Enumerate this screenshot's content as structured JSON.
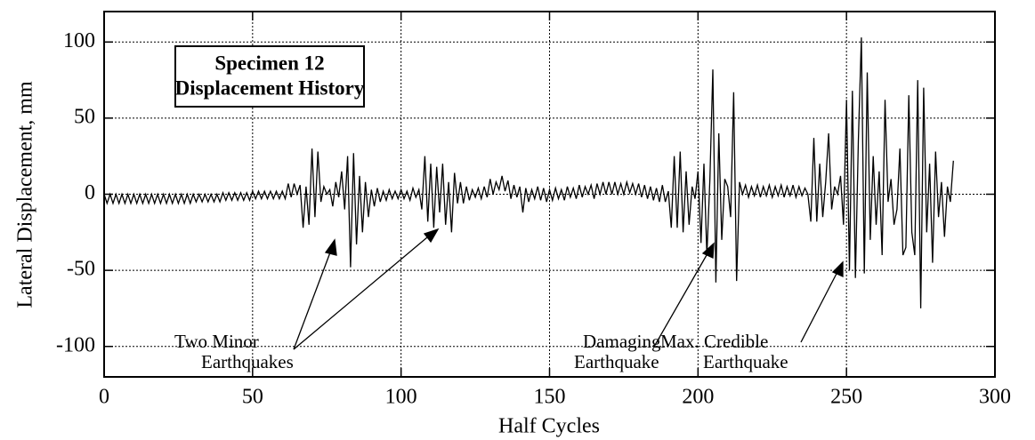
{
  "chart_data": {
    "type": "line",
    "title": [
      "Specimen  12",
      "Displacement  History"
    ],
    "x_label": "Half Cycles",
    "y_label": "Lateral Displacement, mm",
    "xlim": [
      0,
      300
    ],
    "xticks": [
      0,
      50,
      100,
      150,
      200,
      250,
      300
    ],
    "ylim": [
      -120,
      120
    ],
    "yticks": [
      -100,
      -50,
      0,
      50,
      100
    ],
    "grid": true,
    "annotations": [
      {
        "lines": [
          "Two Minor",
          "Earthquakes"
        ]
      },
      {
        "lines": [
          "Damaging",
          "Earthquake"
        ]
      },
      {
        "lines": [
          "Max. Credible",
          "Earthquake"
        ]
      }
    ],
    "series": [
      {
        "color": "#000000",
        "x": [
          0,
          1,
          2,
          3,
          4,
          5,
          6,
          7,
          8,
          9,
          10,
          11,
          12,
          13,
          14,
          15,
          16,
          17,
          18,
          19,
          20,
          21,
          22,
          23,
          24,
          25,
          26,
          27,
          28,
          29,
          30,
          31,
          32,
          33,
          34,
          35,
          36,
          37,
          38,
          39,
          40,
          41,
          42,
          43,
          44,
          45,
          46,
          47,
          48,
          49,
          50,
          51,
          52,
          53,
          54,
          55,
          56,
          57,
          58,
          59,
          60,
          61,
          62,
          63,
          64,
          65,
          66,
          67,
          68,
          69,
          70,
          71,
          72,
          73,
          74,
          75,
          76,
          77,
          78,
          79,
          80,
          81,
          82,
          83,
          84,
          85,
          86,
          87,
          88,
          89,
          90,
          91,
          92,
          93,
          94,
          95,
          96,
          97,
          98,
          99,
          100,
          101,
          102,
          103,
          104,
          105,
          106,
          107,
          108,
          109,
          110,
          111,
          112,
          113,
          114,
          115,
          116,
          117,
          118,
          119,
          120,
          121,
          122,
          123,
          124,
          125,
          126,
          127,
          128,
          129,
          130,
          131,
          132,
          133,
          134,
          135,
          136,
          137,
          138,
          139,
          140,
          141,
          142,
          143,
          144,
          145,
          146,
          147,
          148,
          149,
          150,
          151,
          152,
          153,
          154,
          155,
          156,
          157,
          158,
          159,
          160,
          161,
          162,
          163,
          164,
          165,
          166,
          167,
          168,
          169,
          170,
          171,
          172,
          173,
          174,
          175,
          176,
          177,
          178,
          179,
          180,
          181,
          182,
          183,
          184,
          185,
          186,
          187,
          188,
          189,
          190,
          191,
          192,
          193,
          194,
          195,
          196,
          197,
          198,
          199,
          200,
          201,
          202,
          203,
          204,
          205,
          206,
          207,
          208,
          209,
          210,
          211,
          212,
          213,
          214,
          215,
          216,
          217,
          218,
          219,
          220,
          221,
          222,
          223,
          224,
          225,
          226,
          227,
          228,
          229,
          230,
          231,
          232,
          233,
          234,
          235,
          236,
          237,
          238,
          239,
          240,
          241,
          242,
          243,
          244,
          245,
          246,
          247,
          248,
          249,
          250,
          251,
          252,
          253,
          254,
          255,
          256,
          257,
          258,
          259,
          260,
          261,
          262,
          263,
          264,
          265,
          266,
          267,
          268,
          269,
          270,
          271,
          272,
          273,
          274,
          275,
          276,
          277,
          278,
          279,
          280,
          281,
          282,
          283,
          284,
          285,
          286
        ],
        "values": [
          0,
          -6,
          0,
          -6,
          0,
          -6,
          0,
          -6,
          0,
          -6,
          0,
          -6,
          0,
          -6,
          0,
          -6,
          0,
          -6,
          0,
          -6,
          0,
          -6,
          0,
          -6,
          0,
          -6,
          0,
          -6,
          0,
          -6,
          0,
          -5,
          0,
          -5,
          0,
          -5,
          0,
          -5,
          0,
          -5,
          1,
          -4,
          1,
          -4,
          1,
          -4,
          1,
          -4,
          1,
          -4,
          2,
          -3,
          2,
          -3,
          2,
          -3,
          2,
          -3,
          2,
          -3,
          2,
          -3,
          7,
          -2,
          7,
          0,
          6,
          -22,
          5,
          -20,
          30,
          -15,
          28,
          -5,
          5,
          0,
          3,
          -8,
          8,
          -2,
          15,
          -10,
          25,
          -48,
          27,
          -33,
          12,
          -25,
          8,
          -15,
          3,
          -8,
          4,
          -5,
          2,
          -4,
          3,
          -3,
          2,
          -3,
          3,
          -3,
          2,
          -4,
          4,
          -2,
          3,
          -10,
          25,
          -18,
          20,
          -22,
          18,
          -12,
          20,
          -20,
          8,
          -25,
          14,
          -6,
          8,
          -6,
          5,
          -4,
          3,
          -2,
          4,
          -3,
          5,
          -2,
          10,
          0,
          8,
          3,
          12,
          2,
          9,
          -3,
          6,
          -2,
          5,
          -12,
          4,
          -5,
          3,
          -3,
          5,
          -4,
          4,
          -5,
          3,
          -4,
          4,
          -3,
          3,
          -4,
          5,
          -2,
          4,
          -3,
          6,
          -2,
          5,
          0,
          6,
          -3,
          7,
          0,
          8,
          0,
          8,
          0,
          8,
          0,
          7,
          0,
          8,
          1,
          7,
          0,
          7,
          -2,
          6,
          -3,
          5,
          -4,
          4,
          -5,
          6,
          -5,
          2,
          -22,
          25,
          -22,
          28,
          -25,
          15,
          -20,
          5,
          -3,
          15,
          -32,
          20,
          -40,
          10,
          82,
          -58,
          40,
          -30,
          10,
          5,
          -15,
          67,
          -57,
          8,
          0,
          6,
          -2,
          5,
          -1,
          6,
          -2,
          5,
          -1,
          6,
          -2,
          5,
          -1,
          6,
          -2,
          5,
          -1,
          6,
          -2,
          5,
          -1,
          4,
          0,
          -18,
          37,
          -18,
          20,
          -15,
          8,
          40,
          -10,
          5,
          0,
          12,
          -20,
          62,
          -50,
          68,
          -55,
          35,
          103,
          -52,
          80,
          -30,
          25,
          -20,
          15,
          -40,
          62,
          -5,
          10,
          -20,
          -10,
          30,
          -40,
          -35,
          65,
          -25,
          -40,
          75,
          -75,
          70,
          -25,
          20,
          -45,
          28,
          -15,
          8,
          -28,
          5,
          -5,
          22
        ]
      }
    ]
  }
}
